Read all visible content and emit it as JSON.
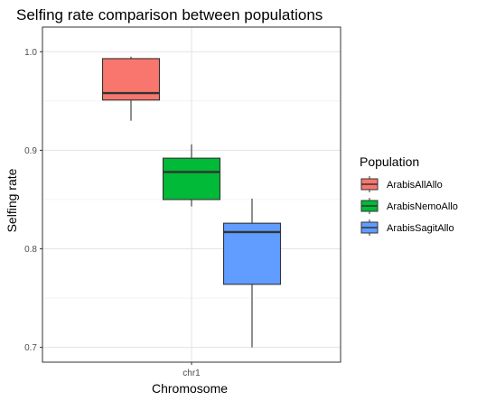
{
  "chart_data": {
    "type": "boxplot",
    "title": "Selfing rate comparison between populations",
    "xlabel": "Chromosome",
    "ylabel": "Selfing rate",
    "categories": [
      "chr1"
    ],
    "ylim": [
      0.685,
      1.025
    ],
    "yticks": [
      0.7,
      0.8,
      0.9,
      1.0
    ],
    "ytick_labels": [
      "0.7",
      "0.8",
      "0.9",
      "1.0"
    ],
    "grid": true,
    "legend": {
      "title": "Population",
      "position": "right"
    },
    "series": [
      {
        "name": "ArabisAllAllo",
        "color": "#F8766D",
        "min": 0.93,
        "q1": 0.951,
        "median": 0.958,
        "q3": 0.993,
        "max": 0.995
      },
      {
        "name": "ArabisNemoAllo",
        "color": "#00BA38",
        "min": 0.843,
        "q1": 0.85,
        "median": 0.878,
        "q3": 0.892,
        "max": 0.906
      },
      {
        "name": "ArabisSagitAllo",
        "color": "#619CFF",
        "min": 0.7,
        "q1": 0.764,
        "median": 0.817,
        "q3": 0.826,
        "max": 0.851
      }
    ]
  }
}
